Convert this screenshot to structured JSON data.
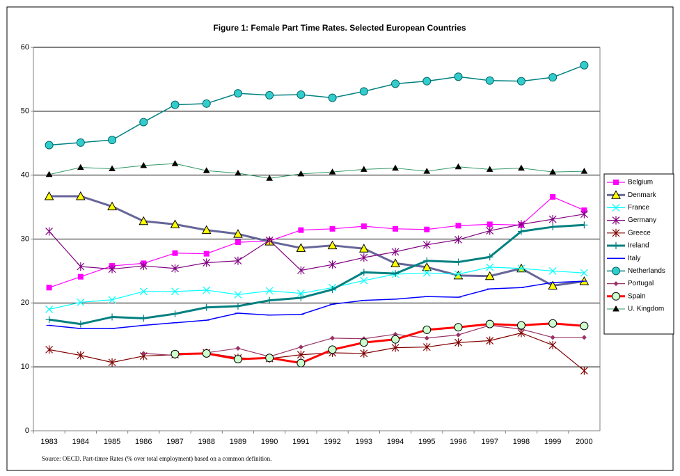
{
  "chart_data": {
    "type": "line",
    "title": "Figure 1: Female Part Time Rates. Selected European Countries",
    "source": "Source: OECD. Part-timre Rates (% over total employment) based on a common definition.",
    "categories": [
      "1983",
      "1984",
      "1985",
      "1986",
      "1987",
      "1988",
      "1989",
      "1990",
      "1991",
      "1992",
      "1993",
      "1994",
      "1995",
      "1996",
      "1997",
      "1998",
      "1999",
      "2000"
    ],
    "ylim": [
      0,
      60
    ],
    "yticks": [
      0,
      10,
      20,
      30,
      40,
      50,
      60
    ],
    "grid": true,
    "legend": "right",
    "series": [
      {
        "name": "Belgium",
        "color": "#ff00ff",
        "marker": "square",
        "values": [
          22.4,
          24.1,
          25.8,
          26.2,
          27.8,
          27.7,
          29.5,
          29.7,
          31.4,
          31.6,
          32.0,
          31.6,
          31.5,
          32.1,
          32.3,
          32.2,
          36.6,
          34.5
        ]
      },
      {
        "name": "Denmark",
        "color": "#666699",
        "marker": "triangle",
        "values": [
          36.7,
          36.7,
          35.1,
          32.8,
          32.3,
          31.4,
          30.8,
          29.6,
          28.6,
          29.0,
          28.5,
          26.2,
          25.6,
          24.3,
          24.2,
          25.4,
          22.7,
          23.4
        ]
      },
      {
        "name": "France",
        "color": "#00ffff",
        "marker": "x",
        "values": [
          19.0,
          20.1,
          20.5,
          21.8,
          21.8,
          22.0,
          21.3,
          21.9,
          21.5,
          22.4,
          23.5,
          24.5,
          24.7,
          24.5,
          25.6,
          25.4,
          25.0,
          24.7
        ]
      },
      {
        "name": "Germany",
        "color": "#800080",
        "marker": "asterisk",
        "values": [
          31.2,
          25.7,
          25.3,
          25.8,
          25.4,
          26.3,
          26.6,
          29.8,
          25.1,
          26.0,
          27.1,
          28.0,
          29.1,
          29.9,
          31.3,
          32.3,
          33.1,
          33.9
        ]
      },
      {
        "name": "Greece",
        "color": "#800000",
        "marker": "asterisk",
        "values": [
          12.7,
          11.8,
          10.7,
          11.7,
          11.9,
          12.2,
          11.4,
          11.3,
          11.9,
          12.2,
          12.1,
          13.0,
          13.1,
          13.8,
          14.1,
          15.3,
          13.4,
          9.4
        ]
      },
      {
        "name": "Ireland",
        "color": "#008080",
        "marker": "plus",
        "values": [
          17.4,
          16.7,
          17.8,
          17.6,
          18.3,
          19.3,
          19.5,
          20.4,
          20.8,
          22.1,
          24.8,
          24.6,
          26.6,
          26.4,
          27.2,
          31.2,
          31.9,
          32.2
        ]
      },
      {
        "name": "Italy",
        "color": "#0000ff",
        "marker": "dash",
        "values": [
          16.5,
          16.0,
          16.0,
          16.5,
          16.9,
          17.3,
          18.4,
          18.1,
          18.2,
          19.8,
          20.4,
          20.6,
          21.0,
          20.9,
          22.2,
          22.4,
          23.2,
          23.4
        ]
      },
      {
        "name": "Netherlands",
        "color": "#008080",
        "marker": "circle",
        "values": [
          44.7,
          45.1,
          45.5,
          48.3,
          51.0,
          51.2,
          52.8,
          52.5,
          52.6,
          52.1,
          53.1,
          54.3,
          54.7,
          55.4,
          54.8,
          54.7,
          55.3,
          57.2
        ]
      },
      {
        "name": "Portugal",
        "color": "#993366",
        "marker": "diamond",
        "values": [
          null,
          null,
          null,
          12.1,
          11.8,
          12.2,
          12.9,
          11.6,
          13.1,
          14.5,
          14.4,
          15.1,
          14.5,
          15.0,
          16.5,
          15.9,
          14.6,
          14.6
        ]
      },
      {
        "name": "Spain",
        "color": "#ff0000",
        "marker": "circle",
        "values": [
          null,
          null,
          null,
          null,
          12.0,
          12.1,
          11.2,
          11.4,
          10.6,
          12.7,
          13.8,
          14.3,
          15.8,
          16.2,
          16.7,
          16.5,
          16.8,
          16.4
        ]
      },
      {
        "name": "U. Kingdom",
        "color": "#339966",
        "marker": "triangle",
        "values": [
          40.1,
          41.2,
          41.0,
          41.5,
          41.8,
          40.7,
          40.3,
          39.5,
          40.2,
          40.5,
          40.9,
          41.1,
          40.6,
          41.3,
          40.9,
          41.1,
          40.5,
          40.6
        ]
      }
    ]
  }
}
